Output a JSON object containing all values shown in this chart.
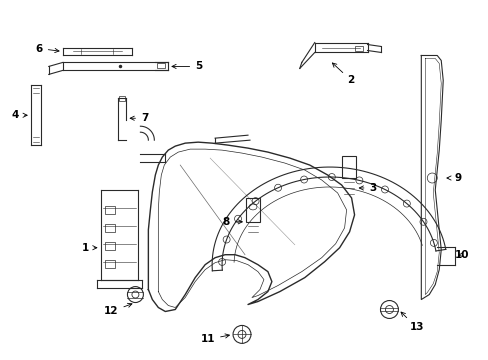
{
  "bg_color": "#ffffff",
  "line_color": "#2a2a2a",
  "lw": 0.8,
  "figsize": [
    4.89,
    3.6
  ],
  "dpi": 100,
  "fs": 7.0
}
